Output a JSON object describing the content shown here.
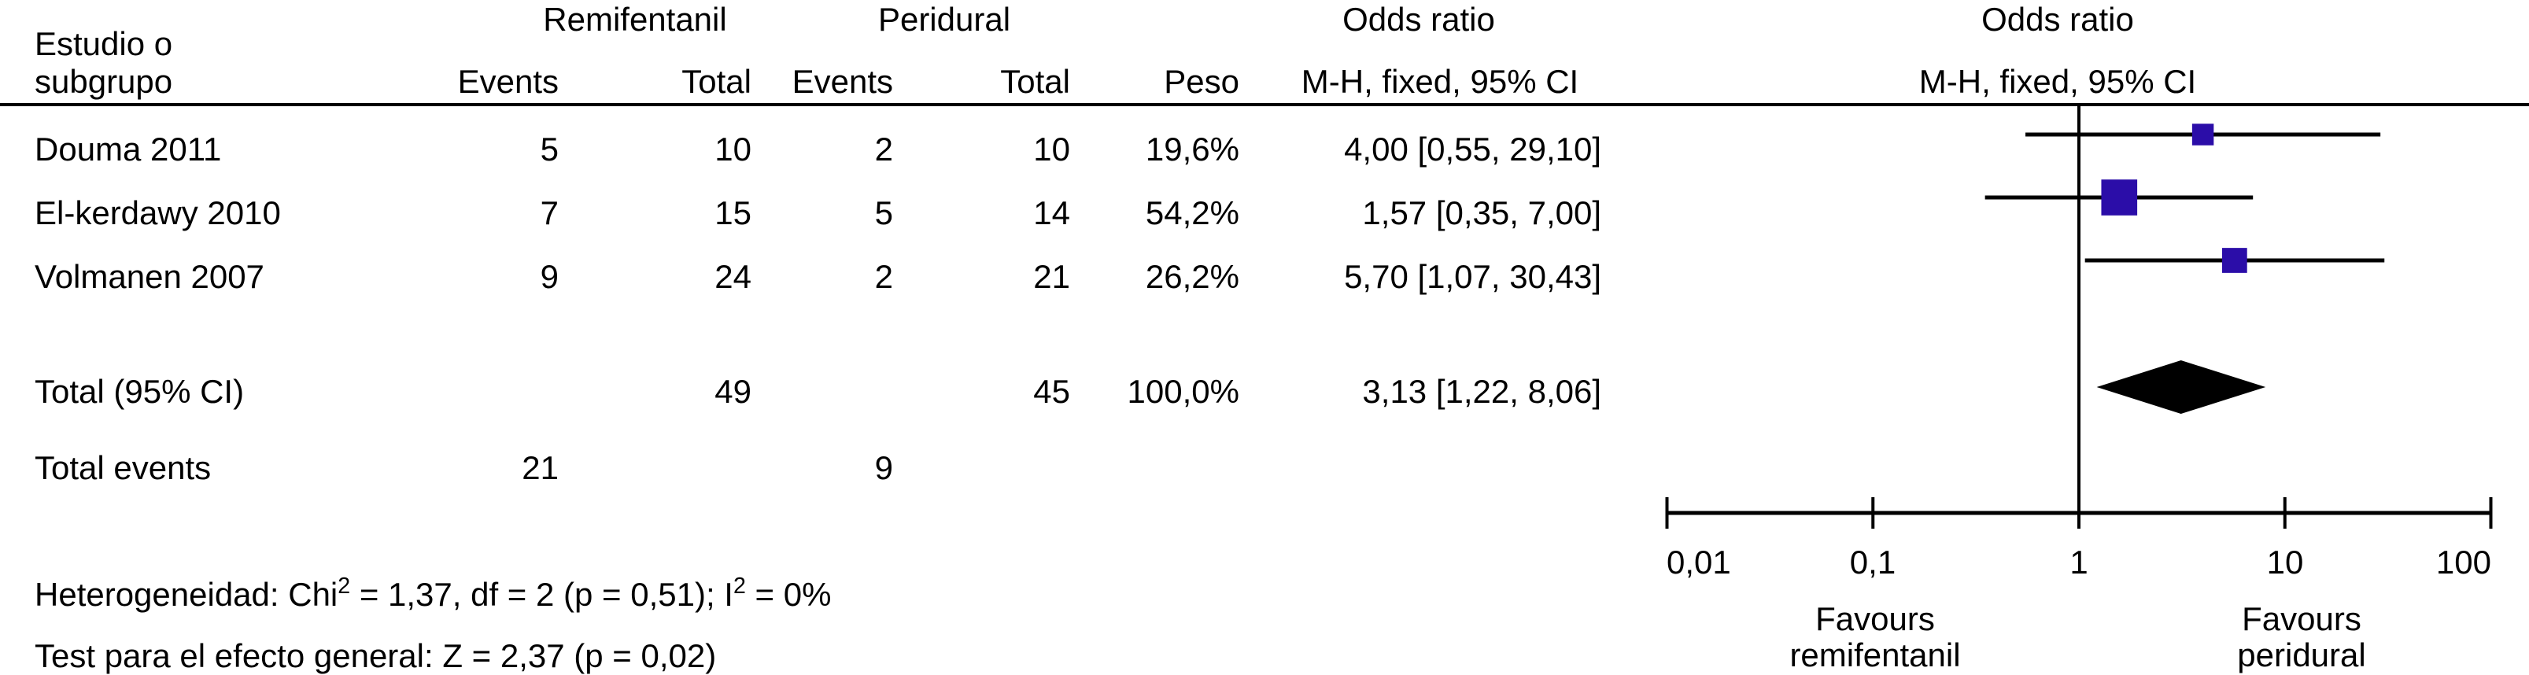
{
  "table": {
    "study_col_header_line1": "Estudio o",
    "study_col_header_line2": "subgrupo",
    "group_headers": {
      "remifentanil": "Remifentanil",
      "peridural": "Peridural"
    },
    "col_headers": {
      "remi_events": "Events",
      "remi_total": "Total",
      "peri_events": "Events",
      "peri_total": "Total",
      "peso": "Peso"
    },
    "or_col_header_line1": "Odds ratio",
    "or_col_header_line2": "M-H, fixed, 95% CI",
    "plot_header_line1": "Odds ratio",
    "plot_header_line2": "M-H, fixed, 95% CI",
    "rows": [
      {
        "study": "Douma 2011",
        "remi_events": "5",
        "remi_total": "10",
        "peri_events": "2",
        "peri_total": "10",
        "peso": "19,6%",
        "or_ci": "4,00 [0,55, 29,10]"
      },
      {
        "study": "El-kerdawy 2010",
        "remi_events": "7",
        "remi_total": "15",
        "peri_events": "5",
        "peri_total": "14",
        "peso": "54,2%",
        "or_ci": "1,57 [0,35, 7,00]"
      },
      {
        "study": "Volmanen 2007",
        "remi_events": "9",
        "remi_total": "24",
        "peri_events": "2",
        "peri_total": "21",
        "peso": "26,2%",
        "or_ci": "5,70 [1,07, 30,43]"
      }
    ],
    "total_row": {
      "label": "Total (95% CI)",
      "remi_total": "49",
      "peri_total": "45",
      "peso": "100,0%",
      "or_ci": "3,13 [1,22, 8,06]"
    },
    "total_events_row": {
      "label": "Total events",
      "remi_events": "21",
      "peri_events": "9"
    }
  },
  "footnotes": {
    "heterogeneity_parts": [
      {
        "text": "Heterogeneidad: Chi"
      },
      {
        "text": "2",
        "sup": true
      },
      {
        "text": " = 1,37, df = 2 (p = 0,51); I"
      },
      {
        "text": "2",
        "sup": true
      },
      {
        "text": " = 0%"
      }
    ],
    "overall_effect": "Test para el efecto general: Z = 2,37 (p = 0,02)"
  },
  "axis": {
    "tick_labels": [
      "0,01",
      "0,1",
      "1",
      "10",
      "100"
    ],
    "favours_left": {
      "line1": "Favours",
      "line2": "remifentanil"
    },
    "favours_right": {
      "line1": "Favours",
      "line2": "peridural"
    }
  },
  "chart_data": {
    "type": "forest",
    "effect_measure": "Odds ratio",
    "method": "M-H, fixed, 95% CI",
    "marker_color": "#2B0DA8",
    "studies": [
      {
        "name": "Douma 2011",
        "remifentanil_events": 5,
        "remifentanil_total": 10,
        "peridural_events": 2,
        "peridural_total": 10,
        "weight_pct": 19.6,
        "or": 4.0,
        "ci_low": 0.55,
        "ci_high": 29.1
      },
      {
        "name": "El-kerdawy 2010",
        "remifentanil_events": 7,
        "remifentanil_total": 15,
        "peridural_events": 5,
        "peridural_total": 14,
        "weight_pct": 54.2,
        "or": 1.57,
        "ci_low": 0.35,
        "ci_high": 7.0
      },
      {
        "name": "Volmanen 2007",
        "remifentanil_events": 9,
        "remifentanil_total": 24,
        "peridural_events": 2,
        "peridural_total": 21,
        "weight_pct": 26.2,
        "or": 5.7,
        "ci_low": 1.07,
        "ci_high": 30.43
      }
    ],
    "total": {
      "remifentanil_events": 21,
      "remifentanil_total": 49,
      "peridural_events": 9,
      "peridural_total": 45,
      "weight_pct": 100.0,
      "or": 3.13,
      "ci_low": 1.22,
      "ci_high": 8.06
    },
    "heterogeneity": "Chi2 = 1,37, df = 2 (p = 0,51); I2 = 0%",
    "overall_effect_test": "Z = 2,37 (p = 0,02)",
    "x_axis": {
      "scale": "log",
      "ticks": [
        0.01,
        0.1,
        1,
        10,
        100
      ],
      "range": [
        0.01,
        100
      ],
      "label_left": "Favours remifentanil",
      "label_right": "Favours peridural"
    }
  }
}
